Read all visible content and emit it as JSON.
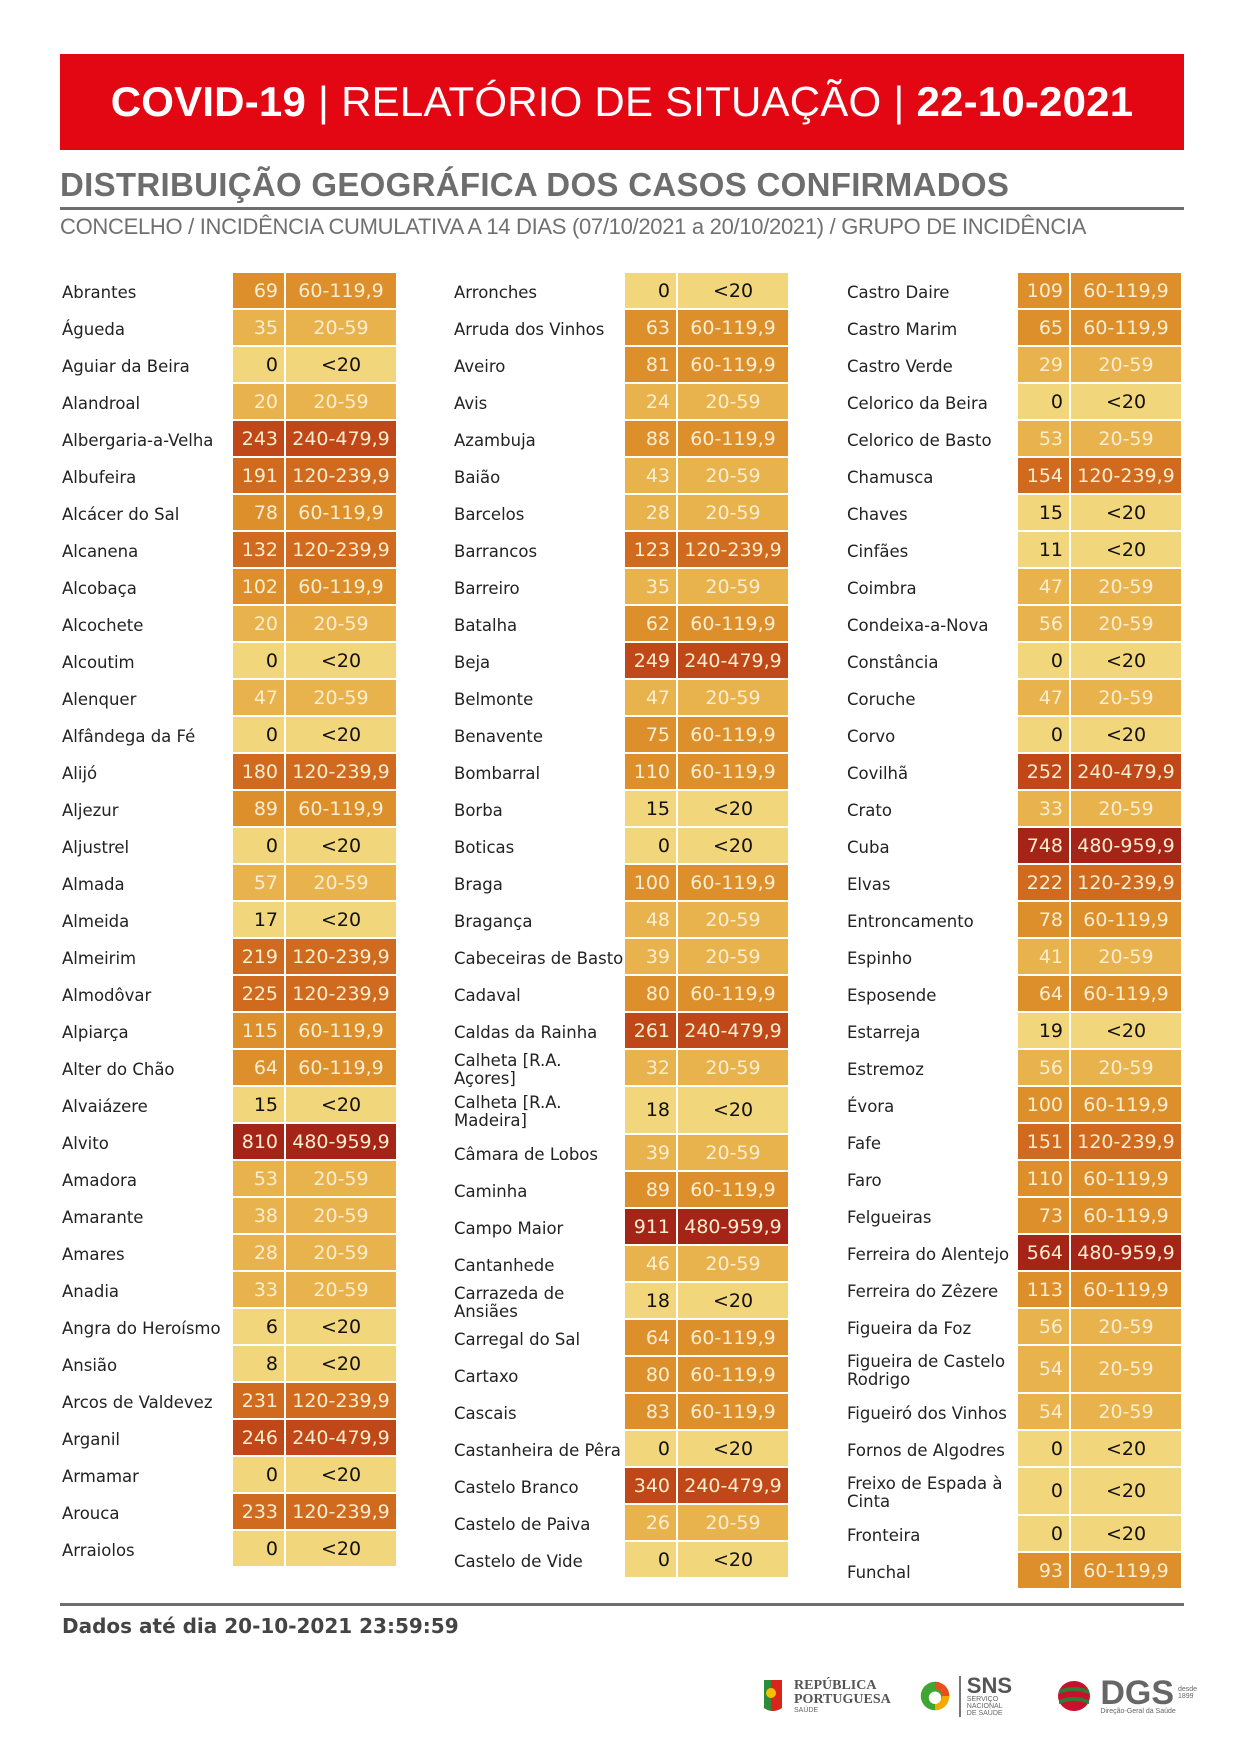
{
  "header": {
    "title_part1": "COVID-19",
    "separator": "|",
    "title_part2": "RELATÓRIO DE SITUAÇÃO",
    "date": "22-10-2021",
    "banner_color": "#e30613"
  },
  "section": {
    "title": "DISTRIBUIÇÃO GEOGRÁFICA DOS CASOS CONFIRMADOS",
    "subtitle": "CONCELHO / INCIDÊNCIA CUMULATIVA A 14 DIAS (07/10/2021 a 20/10/2021) / GRUPO DE INCIDÊNCIA"
  },
  "incidence_groups": {
    "<20": "#f1d67b",
    "20-59": "#e8b24c",
    "60-119,9": "#dd8f2c",
    "120-239,9": "#cf6a1e",
    "240-479,9": "#c04818",
    "480-959,9": "#a42517"
  },
  "columns": [
    [
      {
        "name": "Abrantes",
        "value": "69",
        "group": "60-119,9"
      },
      {
        "name": "Águeda",
        "value": "35",
        "group": "20-59"
      },
      {
        "name": "Aguiar da Beira",
        "value": "0",
        "group": "<20"
      },
      {
        "name": "Alandroal",
        "value": "20",
        "group": "20-59"
      },
      {
        "name": "Albergaria-a-Velha",
        "value": "243",
        "group": "240-479,9"
      },
      {
        "name": "Albufeira",
        "value": "191",
        "group": "120-239,9"
      },
      {
        "name": "Alcácer do Sal",
        "value": "78",
        "group": "60-119,9"
      },
      {
        "name": "Alcanena",
        "value": "132",
        "group": "120-239,9"
      },
      {
        "name": "Alcobaça",
        "value": "102",
        "group": "60-119,9"
      },
      {
        "name": "Alcochete",
        "value": "20",
        "group": "20-59"
      },
      {
        "name": "Alcoutim",
        "value": "0",
        "group": "<20"
      },
      {
        "name": "Alenquer",
        "value": "47",
        "group": "20-59"
      },
      {
        "name": "Alfândega da Fé",
        "value": "0",
        "group": "<20"
      },
      {
        "name": "Alijó",
        "value": "180",
        "group": "120-239,9"
      },
      {
        "name": "Aljezur",
        "value": "89",
        "group": "60-119,9"
      },
      {
        "name": "Aljustrel",
        "value": "0",
        "group": "<20"
      },
      {
        "name": "Almada",
        "value": "57",
        "group": "20-59"
      },
      {
        "name": "Almeida",
        "value": "17",
        "group": "<20"
      },
      {
        "name": "Almeirim",
        "value": "219",
        "group": "120-239,9"
      },
      {
        "name": "Almodôvar",
        "value": "225",
        "group": "120-239,9"
      },
      {
        "name": "Alpiarça",
        "value": "115",
        "group": "60-119,9"
      },
      {
        "name": "Alter do Chão",
        "value": "64",
        "group": "60-119,9"
      },
      {
        "name": "Alvaiázere",
        "value": "15",
        "group": "<20"
      },
      {
        "name": "Alvito",
        "value": "810",
        "group": "480-959,9"
      },
      {
        "name": "Amadora",
        "value": "53",
        "group": "20-59"
      },
      {
        "name": "Amarante",
        "value": "38",
        "group": "20-59"
      },
      {
        "name": "Amares",
        "value": "28",
        "group": "20-59"
      },
      {
        "name": "Anadia",
        "value": "33",
        "group": "20-59"
      },
      {
        "name": "Angra do Heroísmo",
        "value": "6",
        "group": "<20"
      },
      {
        "name": "Ansião",
        "value": "8",
        "group": "<20"
      },
      {
        "name": "Arcos de Valdevez",
        "value": "231",
        "group": "120-239,9"
      },
      {
        "name": "Arganil",
        "value": "246",
        "group": "240-479,9"
      },
      {
        "name": "Armamar",
        "value": "0",
        "group": "<20"
      },
      {
        "name": "Arouca",
        "value": "233",
        "group": "120-239,9"
      },
      {
        "name": "Arraiolos",
        "value": "0",
        "group": "<20"
      }
    ],
    [
      {
        "name": "Arronches",
        "value": "0",
        "group": "<20"
      },
      {
        "name": "Arruda dos Vinhos",
        "value": "63",
        "group": "60-119,9"
      },
      {
        "name": "Aveiro",
        "value": "81",
        "group": "60-119,9"
      },
      {
        "name": "Avis",
        "value": "24",
        "group": "20-59"
      },
      {
        "name": "Azambuja",
        "value": "88",
        "group": "60-119,9"
      },
      {
        "name": "Baião",
        "value": "43",
        "group": "20-59"
      },
      {
        "name": "Barcelos",
        "value": "28",
        "group": "20-59"
      },
      {
        "name": "Barrancos",
        "value": "123",
        "group": "120-239,9"
      },
      {
        "name": "Barreiro",
        "value": "35",
        "group": "20-59"
      },
      {
        "name": "Batalha",
        "value": "62",
        "group": "60-119,9"
      },
      {
        "name": "Beja",
        "value": "249",
        "group": "240-479,9"
      },
      {
        "name": "Belmonte",
        "value": "47",
        "group": "20-59"
      },
      {
        "name": "Benavente",
        "value": "75",
        "group": "60-119,9"
      },
      {
        "name": "Bombarral",
        "value": "110",
        "group": "60-119,9"
      },
      {
        "name": "Borba",
        "value": "15",
        "group": "<20"
      },
      {
        "name": "Boticas",
        "value": "0",
        "group": "<20"
      },
      {
        "name": "Braga",
        "value": "100",
        "group": "60-119,9"
      },
      {
        "name": "Bragança",
        "value": "48",
        "group": "20-59"
      },
      {
        "name": "Cabeceiras de Basto",
        "value": "39",
        "group": "20-59"
      },
      {
        "name": "Cadaval",
        "value": "80",
        "group": "60-119,9"
      },
      {
        "name": "Caldas da Rainha",
        "value": "261",
        "group": "240-479,9"
      },
      {
        "name": "Calheta [R.A. Açores]",
        "value": "32",
        "group": "20-59"
      },
      {
        "name": "Calheta [R.A. Madeira]",
        "value": "18",
        "group": "<20",
        "tall": true
      },
      {
        "name": "Câmara de Lobos",
        "value": "39",
        "group": "20-59"
      },
      {
        "name": "Caminha",
        "value": "89",
        "group": "60-119,9"
      },
      {
        "name": "Campo Maior",
        "value": "911",
        "group": "480-959,9"
      },
      {
        "name": "Cantanhede",
        "value": "46",
        "group": "20-59"
      },
      {
        "name": "Carrazeda de Ansiães",
        "value": "18",
        "group": "<20"
      },
      {
        "name": "Carregal do Sal",
        "value": "64",
        "group": "60-119,9"
      },
      {
        "name": "Cartaxo",
        "value": "80",
        "group": "60-119,9"
      },
      {
        "name": "Cascais",
        "value": "83",
        "group": "60-119,9"
      },
      {
        "name": "Castanheira de Pêra",
        "value": "0",
        "group": "<20"
      },
      {
        "name": "Castelo Branco",
        "value": "340",
        "group": "240-479,9"
      },
      {
        "name": "Castelo de Paiva",
        "value": "26",
        "group": "20-59"
      },
      {
        "name": "Castelo de Vide",
        "value": "0",
        "group": "<20"
      }
    ],
    [
      {
        "name": "Castro Daire",
        "value": "109",
        "group": "60-119,9"
      },
      {
        "name": "Castro Marim",
        "value": "65",
        "group": "60-119,9"
      },
      {
        "name": "Castro Verde",
        "value": "29",
        "group": "20-59"
      },
      {
        "name": "Celorico da Beira",
        "value": "0",
        "group": "<20"
      },
      {
        "name": "Celorico de Basto",
        "value": "53",
        "group": "20-59"
      },
      {
        "name": "Chamusca",
        "value": "154",
        "group": "120-239,9"
      },
      {
        "name": "Chaves",
        "value": "15",
        "group": "<20"
      },
      {
        "name": "Cinfães",
        "value": "11",
        "group": "<20"
      },
      {
        "name": "Coimbra",
        "value": "47",
        "group": "20-59"
      },
      {
        "name": "Condeixa-a-Nova",
        "value": "56",
        "group": "20-59"
      },
      {
        "name": "Constância",
        "value": "0",
        "group": "<20"
      },
      {
        "name": "Coruche",
        "value": "47",
        "group": "20-59"
      },
      {
        "name": "Corvo",
        "value": "0",
        "group": "<20"
      },
      {
        "name": "Covilhã",
        "value": "252",
        "group": "240-479,9"
      },
      {
        "name": "Crato",
        "value": "33",
        "group": "20-59"
      },
      {
        "name": "Cuba",
        "value": "748",
        "group": "480-959,9"
      },
      {
        "name": "Elvas",
        "value": "222",
        "group": "120-239,9"
      },
      {
        "name": "Entroncamento",
        "value": "78",
        "group": "60-119,9"
      },
      {
        "name": "Espinho",
        "value": "41",
        "group": "20-59"
      },
      {
        "name": "Esposende",
        "value": "64",
        "group": "60-119,9"
      },
      {
        "name": "Estarreja",
        "value": "19",
        "group": "<20"
      },
      {
        "name": "Estremoz",
        "value": "56",
        "group": "20-59"
      },
      {
        "name": "Évora",
        "value": "100",
        "group": "60-119,9"
      },
      {
        "name": "Fafe",
        "value": "151",
        "group": "120-239,9"
      },
      {
        "name": "Faro",
        "value": "110",
        "group": "60-119,9"
      },
      {
        "name": "Felgueiras",
        "value": "73",
        "group": "60-119,9"
      },
      {
        "name": "Ferreira do Alentejo",
        "value": "564",
        "group": "480-959,9"
      },
      {
        "name": "Ferreira do Zêzere",
        "value": "113",
        "group": "60-119,9"
      },
      {
        "name": "Figueira da Foz",
        "value": "56",
        "group": "20-59"
      },
      {
        "name": "Figueira de Castelo Rodrigo",
        "value": "54",
        "group": "20-59",
        "tall": true
      },
      {
        "name": "Figueiró dos Vinhos",
        "value": "54",
        "group": "20-59"
      },
      {
        "name": "Fornos de Algodres",
        "value": "0",
        "group": "<20"
      },
      {
        "name": "Freixo de Espada à Cinta",
        "value": "0",
        "group": "<20",
        "tall": true
      },
      {
        "name": "Fronteira",
        "value": "0",
        "group": "<20"
      },
      {
        "name": "Funchal",
        "value": "93",
        "group": "60-119,9"
      }
    ]
  ],
  "footer": {
    "data_note": "Dados até dia 20-10-2021 23:59:59"
  },
  "logos": {
    "republica": {
      "line1": "REPÚBLICA",
      "line2": "PORTUGUESA",
      "line3": "SAÚDE"
    },
    "sns": {
      "title": "SNS",
      "line1": "SERVIÇO NACIONAL",
      "line2": "DE SAÚDE"
    },
    "dgs": {
      "title": "DGS",
      "since": "desde 1899",
      "line1": "Direção-Geral da Saúde"
    }
  }
}
